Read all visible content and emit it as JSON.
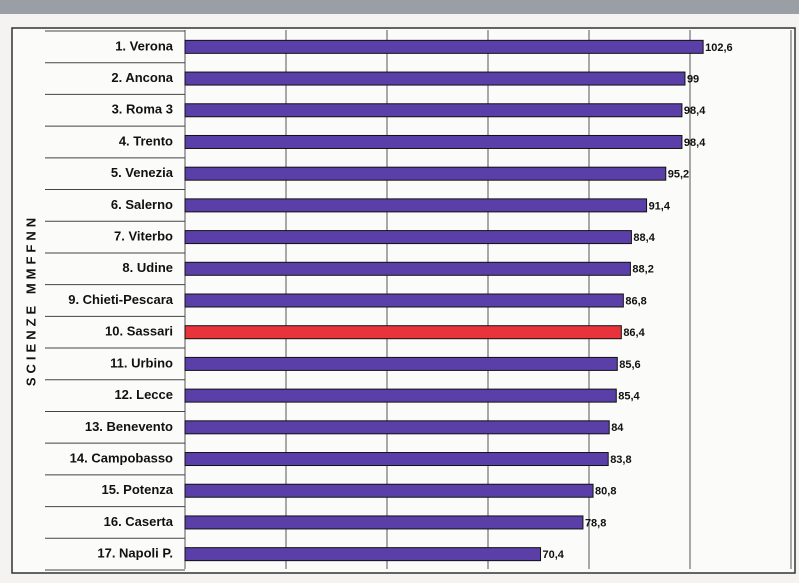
{
  "chart_data": {
    "type": "barh",
    "ylabel": "SCIENZE MMFFNN",
    "categories": [
      "1. Verona",
      "2. Ancona",
      "3. Roma 3",
      "4. Trento",
      "5. Venezia",
      "6. Salerno",
      "7. Viterbo",
      "8. Udine",
      "9. Chieti-Pescara",
      "10. Sassari",
      "11. Urbino",
      "12. Lecce",
      "13. Benevento",
      "14. Campobasso",
      "15. Potenza",
      "16. Caserta",
      "17. Napoli P."
    ],
    "values": [
      102.6,
      99,
      98.4,
      98.4,
      95.2,
      91.4,
      88.4,
      88.2,
      86.8,
      86.4,
      85.6,
      85.4,
      84,
      83.8,
      80.8,
      78.8,
      70.4
    ],
    "value_labels": [
      "102,6",
      "99",
      "98,4",
      "98,4",
      "95,2",
      "91,4",
      "88,4",
      "88,2",
      "86,8",
      "86,4",
      "85,6",
      "85,4",
      "84",
      "83,8",
      "80,8",
      "78,8",
      "70,4"
    ],
    "colors": [
      "#5a3fa8",
      "#5a3fa8",
      "#5a3fa8",
      "#5a3fa8",
      "#5a3fa8",
      "#5a3fa8",
      "#5a3fa8",
      "#5a3fa8",
      "#5a3fa8",
      "#e8333c",
      "#5a3fa8",
      "#5a3fa8",
      "#5a3fa8",
      "#5a3fa8",
      "#5a3fa8",
      "#5a3fa8",
      "#5a3fa8"
    ],
    "xlim": [
      0,
      120
    ],
    "xticks": [
      0,
      20,
      40,
      60,
      80,
      100,
      120
    ],
    "grid": true
  }
}
